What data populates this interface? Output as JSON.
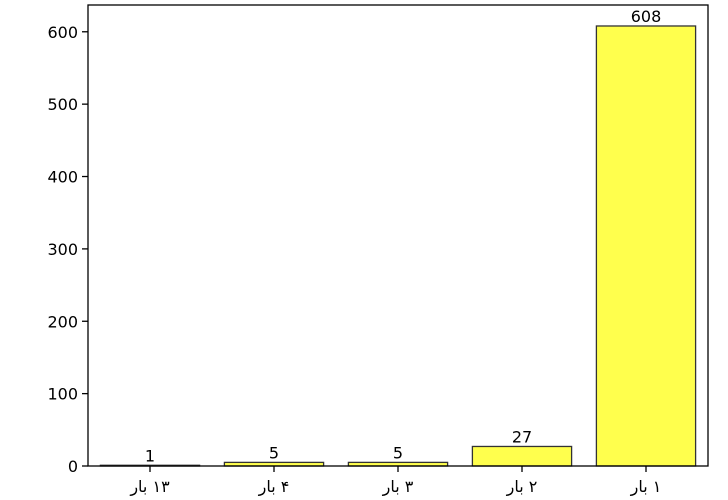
{
  "chart_data": {
    "type": "bar",
    "title": "",
    "xlabel": "",
    "ylabel": "",
    "categories": [
      "۱۳ بار",
      "۴ بار",
      "۳ بار",
      "۲ بار",
      "۱ بار"
    ],
    "values": [
      1,
      5,
      5,
      27,
      608
    ],
    "data_labels": [
      "1",
      "5",
      "5",
      "27",
      "608"
    ],
    "ylim": [
      0,
      637
    ],
    "yticks": [
      0,
      100,
      200,
      300,
      400,
      500,
      600
    ],
    "ytick_labels": [
      "0",
      "100",
      "200",
      "300",
      "400",
      "500",
      "600"
    ],
    "grid": false,
    "bar_color": "#ffff4d",
    "bar_edge_color": "#333333"
  }
}
